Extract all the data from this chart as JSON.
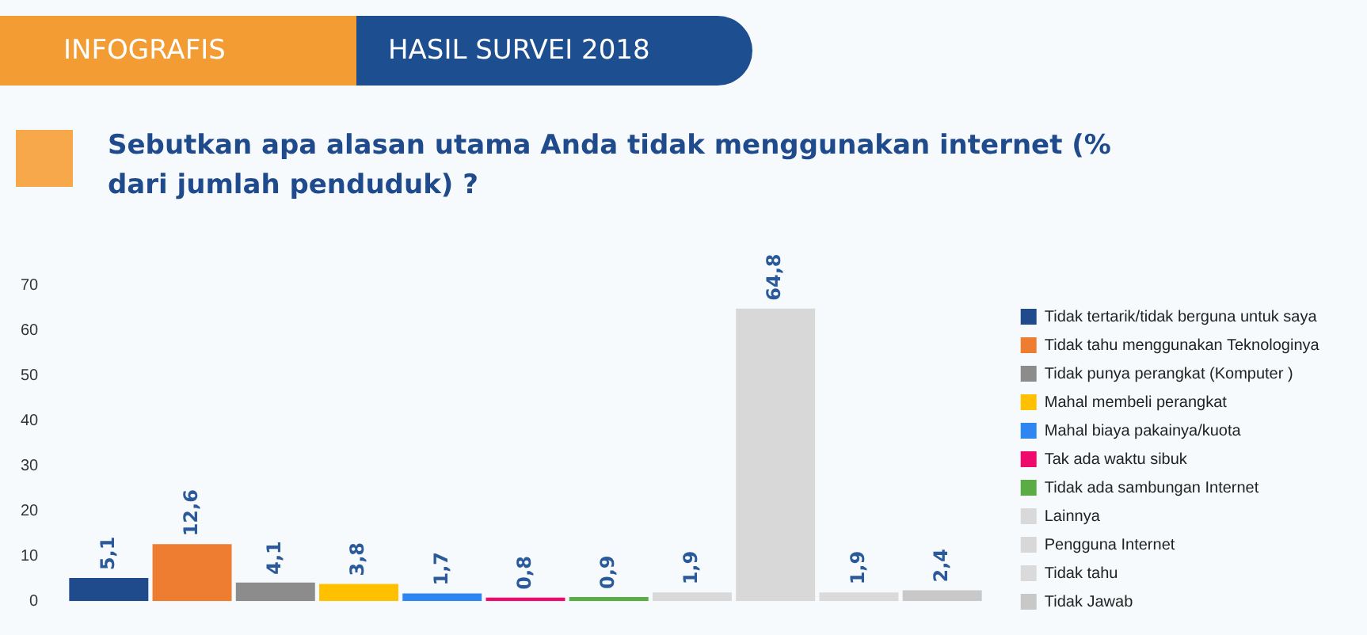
{
  "chart_data": {
    "type": "bar",
    "title": "Sebutkan apa alasan utama Anda tidak menggunakan internet (% dari jumlah penduduk) ?",
    "annotations": [
      "INFOGRAFIS",
      "HASIL SURVEI 2018"
    ],
    "categories": [
      null
    ],
    "ylim": [
      0,
      70
    ],
    "yticks": [
      0,
      10,
      20,
      30,
      40,
      50,
      60,
      70
    ],
    "grid": false,
    "legend": "right",
    "series": [
      {
        "name": "Tidak tertarik/tidak berguna untuk saya",
        "color": "#1f4a8c",
        "values": [
          5.1
        ],
        "value_labels": [
          "5,1"
        ]
      },
      {
        "name": "Tidak tahu menggunakan Teknologinya",
        "color": "#ee7d31",
        "values": [
          12.6
        ],
        "value_labels": [
          "12,6"
        ]
      },
      {
        "name": "Tidak punya perangkat (Komputer )",
        "color": "#8c8c8c",
        "values": [
          4.1
        ],
        "value_labels": [
          "4,1"
        ]
      },
      {
        "name": "Mahal membeli perangkat",
        "color": "#ffc000",
        "values": [
          3.8
        ],
        "value_labels": [
          "3,8"
        ]
      },
      {
        "name": "Mahal biaya pakainya/kuota",
        "color": "#2f86f0",
        "values": [
          1.7
        ],
        "value_labels": [
          "1,7"
        ]
      },
      {
        "name": "Tak ada waktu sibuk",
        "color": "#ee0b6c",
        "values": [
          0.8
        ],
        "value_labels": [
          "0,8"
        ]
      },
      {
        "name": "Tidak ada sambungan Internet",
        "color": "#5aad45",
        "values": [
          0.9
        ],
        "value_labels": [
          "0,9"
        ]
      },
      {
        "name": "Lainnya",
        "color": "#d9d9d9",
        "values": [
          1.9
        ],
        "value_labels": [
          "1,9"
        ]
      },
      {
        "name": "Pengguna Internet",
        "color": "#d8d8d8",
        "values": [
          64.8
        ],
        "value_labels": [
          "64,8"
        ]
      },
      {
        "name": "Tidak tahu",
        "color": "#dadada",
        "values": [
          1.9
        ],
        "value_labels": [
          "1,9"
        ]
      },
      {
        "name": "Tidak Jawab",
        "color": "#c8c8c8",
        "values": [
          2.4
        ],
        "value_labels": [
          "2,4"
        ]
      }
    ]
  }
}
